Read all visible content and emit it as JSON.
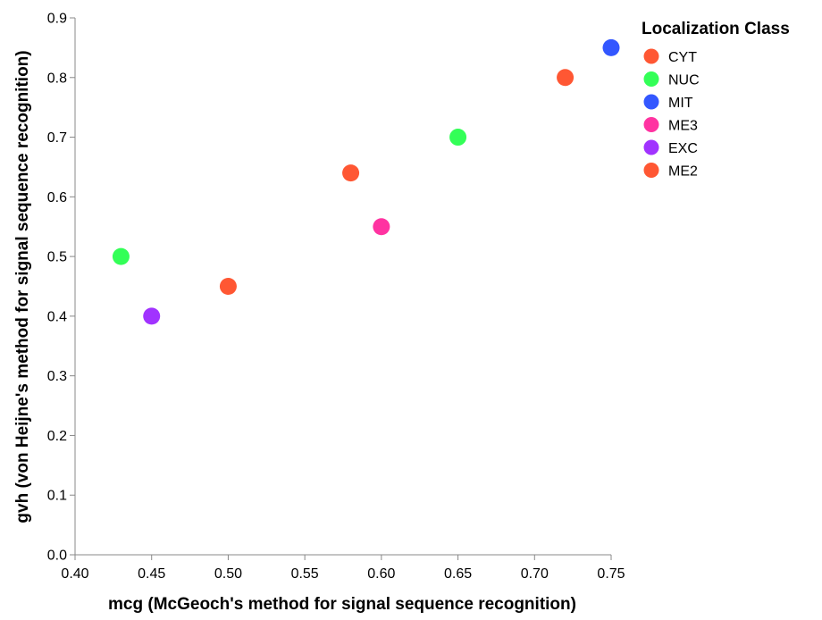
{
  "chart_data": {
    "type": "scatter",
    "xlabel": "mcg (McGeoch's method for signal sequence recognition)",
    "ylabel": "gvh (von Heijne's method for signal sequence recognition)",
    "xlim": [
      0.4,
      0.75
    ],
    "ylim": [
      0.0,
      0.9
    ],
    "xticks": [
      "0.40",
      "0.45",
      "0.50",
      "0.55",
      "0.60",
      "0.65",
      "0.70",
      "0.75"
    ],
    "yticks": [
      "0.0",
      "0.1",
      "0.2",
      "0.3",
      "0.4",
      "0.5",
      "0.6",
      "0.7",
      "0.8",
      "0.9"
    ],
    "grid": false,
    "legend": {
      "title": "Localization Class",
      "placement": "right",
      "entries": [
        {
          "label": "CYT",
          "color": "#ff5733"
        },
        {
          "label": "NUC",
          "color": "#33ff57"
        },
        {
          "label": "MIT",
          "color": "#3357ff"
        },
        {
          "label": "ME3",
          "color": "#ff33a1"
        },
        {
          "label": "EXC",
          "color": "#a133ff"
        },
        {
          "label": "ME2",
          "color": "#ff5733"
        }
      ]
    },
    "points": [
      {
        "x": 0.43,
        "y": 0.5,
        "class": "NUC"
      },
      {
        "x": 0.45,
        "y": 0.4,
        "class": "EXC"
      },
      {
        "x": 0.5,
        "y": 0.45,
        "class": "CYT"
      },
      {
        "x": 0.58,
        "y": 0.64,
        "class": "ME2"
      },
      {
        "x": 0.6,
        "y": 0.55,
        "class": "ME3"
      },
      {
        "x": 0.65,
        "y": 0.7,
        "class": "NUC"
      },
      {
        "x": 0.72,
        "y": 0.8,
        "class": "CYT"
      },
      {
        "x": 0.75,
        "y": 0.85,
        "class": "MIT"
      }
    ]
  }
}
